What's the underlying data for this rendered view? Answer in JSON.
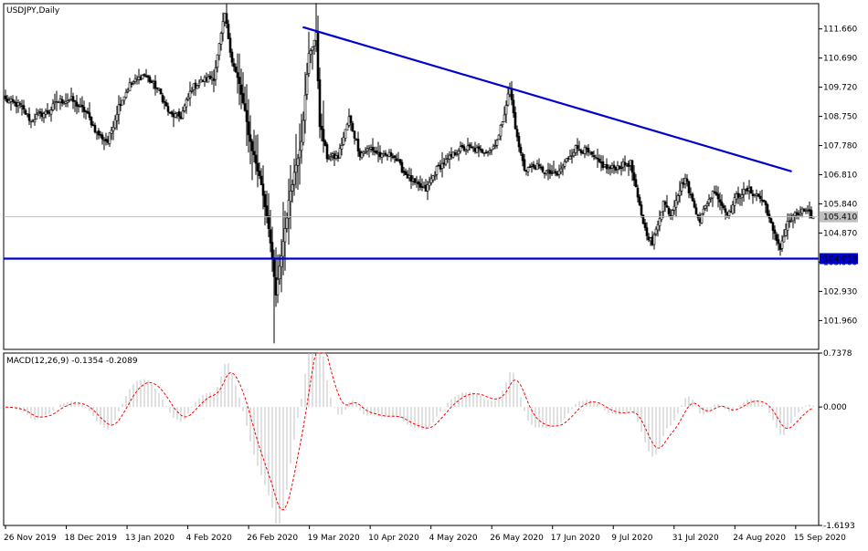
{
  "chart_data": [
    {
      "type": "candlestick",
      "title": "USDJPY,Daily",
      "ylim": [
        101.0,
        112.5
      ],
      "y_ticks": [
        "111.660",
        "110.690",
        "109.720",
        "108.750",
        "107.780",
        "106.810",
        "105.840",
        "104.870",
        "103.900",
        "102.930",
        "101.960"
      ],
      "price_label": "105.410",
      "support_label": "104.019",
      "current_price": 105.41,
      "support_level": 104.019,
      "trendline": {
        "from": {
          "bar": 0.367,
          "price": 111.72
        },
        "to": {
          "bar": 0.967,
          "price": 106.92
        }
      },
      "colors": {
        "up": "#ffffff",
        "down": "#000000",
        "lines": "#0000cc",
        "price_line": "#c0c0c0"
      },
      "anchors": [
        [
          0,
          109.3
        ],
        [
          8,
          109.1
        ],
        [
          14,
          108.6
        ],
        [
          18,
          108.8
        ],
        [
          24,
          108.9
        ],
        [
          28,
          109.25
        ],
        [
          36,
          109.3
        ],
        [
          44,
          108.9
        ],
        [
          50,
          108.2
        ],
        [
          56,
          107.9
        ],
        [
          62,
          109.1
        ],
        [
          68,
          109.8
        ],
        [
          76,
          110.15
        ],
        [
          84,
          109.6
        ],
        [
          90,
          108.8
        ],
        [
          96,
          108.75
        ],
        [
          102,
          109.7
        ],
        [
          108,
          109.95
        ],
        [
          114,
          110.05
        ],
        [
          120,
          112.15
        ],
        [
          124,
          110.6
        ],
        [
          128,
          109.8
        ],
        [
          134,
          107.9
        ],
        [
          140,
          106.5
        ],
        [
          144,
          105.1
        ],
        [
          148,
          102.8
        ],
        [
          152,
          104.6
        ],
        [
          156,
          106.3
        ],
        [
          162,
          108.0
        ],
        [
          166,
          110.8
        ],
        [
          170,
          111.45
        ],
        [
          172,
          108.5
        ],
        [
          176,
          107.4
        ],
        [
          182,
          107.4
        ],
        [
          188,
          108.7
        ],
        [
          194,
          107.5
        ],
        [
          200,
          107.7
        ],
        [
          206,
          107.4
        ],
        [
          212,
          107.5
        ],
        [
          218,
          106.9
        ],
        [
          224,
          106.5
        ],
        [
          230,
          106.3
        ],
        [
          236,
          107.0
        ],
        [
          242,
          107.3
        ],
        [
          248,
          107.65
        ],
        [
          254,
          107.7
        ],
        [
          260,
          107.6
        ],
        [
          266,
          107.65
        ],
        [
          270,
          108.1
        ],
        [
          276,
          109.7
        ],
        [
          280,
          108.0
        ],
        [
          284,
          107.0
        ],
        [
          290,
          107.1
        ],
        [
          296,
          106.9
        ],
        [
          302,
          106.8
        ],
        [
          308,
          107.4
        ],
        [
          312,
          107.7
        ],
        [
          318,
          107.6
        ],
        [
          324,
          107.25
        ],
        [
          330,
          107.0
        ],
        [
          336,
          107.1
        ],
        [
          342,
          107.2
        ],
        [
          346,
          106.0
        ],
        [
          350,
          105.0
        ],
        [
          354,
          104.5
        ],
        [
          360,
          105.9
        ],
        [
          364,
          105.5
        ],
        [
          368,
          106.2
        ],
        [
          372,
          106.7
        ],
        [
          376,
          105.9
        ],
        [
          380,
          105.3
        ],
        [
          384,
          105.9
        ],
        [
          388,
          106.3
        ],
        [
          392,
          105.8
        ],
        [
          396,
          105.5
        ],
        [
          400,
          106.1
        ],
        [
          406,
          106.3
        ],
        [
          412,
          106.1
        ],
        [
          416,
          105.8
        ],
        [
          420,
          104.9
        ],
        [
          424,
          104.4
        ],
        [
          428,
          105.2
        ],
        [
          432,
          105.45
        ],
        [
          436,
          105.6
        ],
        [
          440,
          105.5
        ],
        [
          442,
          105.41
        ]
      ]
    },
    {
      "type": "macd",
      "title": "MACD(12,26,9) -0.1354 -0.2089",
      "ylim": [
        -1.6193,
        0.7378
      ],
      "y_ticks": [
        "0.7378",
        "0.000",
        "-1.6193"
      ],
      "x_tick_labels": [
        "26 Nov 2019",
        "18 Dec 2019",
        "13 Jan 2020",
        "4 Feb 2020",
        "26 Feb 2020",
        "19 Mar 2020",
        "10 Apr 2020",
        "4 May 2020",
        "26 May 2020",
        "17 Jun 2020",
        "9 Jul 2020",
        "31 Jul 2020",
        "24 Aug 2020",
        "15 Sep 2020"
      ],
      "colors": {
        "histogram": "#c0c0c0",
        "signal": "#ff0000"
      }
    }
  ]
}
